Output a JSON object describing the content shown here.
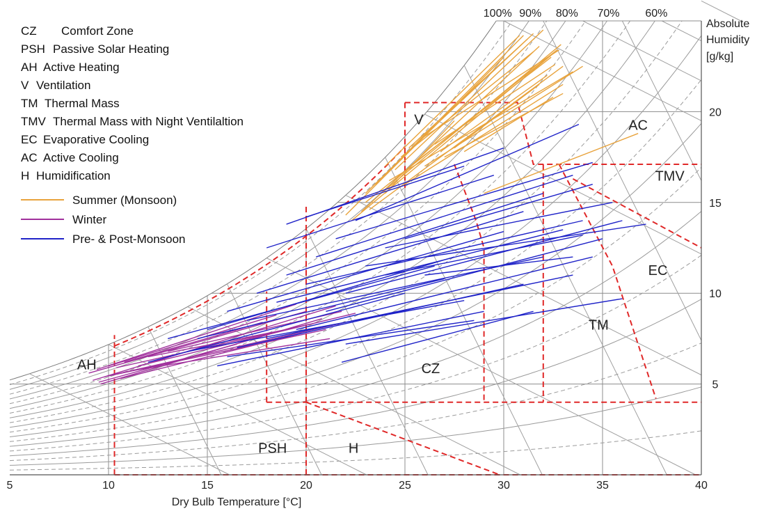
{
  "chart_data": {
    "type": "line",
    "title": "",
    "xlabel": "Dry Bulb Temperature [°C]",
    "ylabel": "Absolute Humidity [g/kg]",
    "ylabel_lines": [
      "Absolute",
      "Humidity",
      "[g/kg]"
    ],
    "xlim": [
      5,
      40
    ],
    "ylim": [
      0,
      25
    ],
    "x_ticks": [
      "5",
      "10",
      "15",
      "20",
      "25",
      "30",
      "35",
      "40"
    ],
    "y_ticks": [
      "5",
      "10",
      "15",
      "20"
    ],
    "rh_labels": [
      "100%",
      "90%",
      "80%",
      "70%",
      "60%"
    ],
    "rh_curves_solid": [
      1.0,
      0.9,
      0.8,
      0.7,
      0.6,
      0.5,
      0.4,
      0.3,
      0.2,
      0.1
    ],
    "rh_curves_dashed": [
      0.95,
      0.85,
      0.75,
      0.65,
      0.55,
      0.45,
      0.35,
      0.25,
      0.15,
      0.05
    ],
    "abbreviations": [
      {
        "code": "CZ",
        "text": "Comfort Zone"
      },
      {
        "code": "PSH",
        "text": "Passive Solar Heating"
      },
      {
        "code": "AH",
        "text": "Active Heating"
      },
      {
        "code": "V",
        "text": "Ventilation"
      },
      {
        "code": "TM",
        "text": "Thermal Mass"
      },
      {
        "code": "TMV",
        "text": "Thermal Mass with Night Ventilaltion"
      },
      {
        "code": "EC",
        "text": "Evaporative Cooling"
      },
      {
        "code": "AC",
        "text": "Active Cooling"
      },
      {
        "code": "H",
        "text": "Humidification"
      }
    ],
    "zone_labels": [
      {
        "text": "V",
        "x": 25.7,
        "y": 19.3
      },
      {
        "text": "AC",
        "x": 36.8,
        "y": 19.0
      },
      {
        "text": "TMV",
        "x": 38.4,
        "y": 16.2
      },
      {
        "text": "EC",
        "x": 37.8,
        "y": 11.0
      },
      {
        "text": "TM",
        "x": 34.8,
        "y": 8.0
      },
      {
        "text": "CZ",
        "x": 26.3,
        "y": 5.6
      },
      {
        "text": "AH",
        "x": 8.9,
        "y": 5.8
      },
      {
        "text": "PSH",
        "x": 18.3,
        "y": 1.2
      },
      {
        "text": "H",
        "x": 22.4,
        "y": 1.2
      }
    ],
    "zone_boundaries": [
      {
        "name": "AH",
        "points": [
          [
            10.3,
            0
          ],
          [
            10.3,
            7.7
          ]
        ]
      },
      {
        "name": "PSH",
        "points": [
          [
            18,
            4
          ],
          [
            18,
            10.1
          ]
        ]
      },
      {
        "name": "PSH",
        "points": [
          [
            20,
            0
          ],
          [
            20,
            14.8
          ]
        ]
      },
      {
        "name": "CZ",
        "points": [
          [
            18,
            4
          ],
          [
            40,
            4
          ]
        ]
      },
      {
        "name": "CZ",
        "points": [
          [
            20,
            4
          ],
          [
            29.8,
            0
          ]
        ]
      },
      {
        "name": "V",
        "points": [
          [
            25,
            20.5
          ],
          [
            30,
            20.5
          ],
          [
            30.7,
            20.5
          ],
          [
            31.5,
            17.1
          ],
          [
            40,
            17.1
          ]
        ]
      },
      {
        "name": "V",
        "points": [
          [
            25,
            20.5
          ],
          [
            25,
            15.8
          ]
        ]
      },
      {
        "name": "CZ",
        "points": [
          [
            27.5,
            17.1
          ],
          [
            28.6,
            14.0
          ],
          [
            29.0,
            12.5
          ],
          [
            29.0,
            4.0
          ]
        ]
      },
      {
        "name": "TM",
        "points": [
          [
            32,
            17.1
          ],
          [
            32,
            4
          ]
        ]
      },
      {
        "name": "EC",
        "points": [
          [
            32.8,
            17.1
          ],
          [
            35.5,
            11.5
          ],
          [
            37.7,
            4.2
          ]
        ]
      },
      {
        "name": "TMV",
        "points": [
          [
            33.5,
            16.3
          ],
          [
            40,
            12.5
          ]
        ]
      },
      {
        "name": "H",
        "points": [
          [
            10.3,
            0
          ],
          [
            40,
            0
          ]
        ]
      }
    ],
    "series": [
      {
        "name": "Summer (Monsoon)",
        "color": "#e8a33d",
        "segments": [
          [
            [
              22.0,
              14.3
            ],
            [
              30.0,
              23.0
            ]
          ],
          [
            [
              22.3,
              14.0
            ],
            [
              32.5,
              23.2
            ]
          ],
          [
            [
              22.8,
              14.5
            ],
            [
              31.8,
              23.6
            ]
          ],
          [
            [
              23.0,
              15.0
            ],
            [
              32.7,
              23.4
            ]
          ],
          [
            [
              23.2,
              14.6
            ],
            [
              33.0,
              22.5
            ]
          ],
          [
            [
              23.5,
              16.0
            ],
            [
              31.0,
              24.2
            ]
          ],
          [
            [
              23.8,
              15.5
            ],
            [
              32.9,
              23.7
            ]
          ],
          [
            [
              24.0,
              17.0
            ],
            [
              30.8,
              24.2
            ]
          ],
          [
            [
              24.2,
              16.2
            ],
            [
              33.5,
              22.2
            ]
          ],
          [
            [
              24.5,
              16.8
            ],
            [
              32.0,
              24.5
            ]
          ],
          [
            [
              24.8,
              17.5
            ],
            [
              31.5,
              23.3
            ]
          ],
          [
            [
              25.0,
              16.0
            ],
            [
              33.0,
              21.5
            ]
          ],
          [
            [
              25.2,
              18.0
            ],
            [
              31.5,
              24.3
            ]
          ],
          [
            [
              25.5,
              17.2
            ],
            [
              32.4,
              23.0
            ]
          ],
          [
            [
              25.8,
              18.5
            ],
            [
              32.8,
              23.4
            ]
          ],
          [
            [
              26.0,
              17.0
            ],
            [
              34.0,
              22.5
            ]
          ],
          [
            [
              26.3,
              19.0
            ],
            [
              31.2,
              24.0
            ]
          ],
          [
            [
              26.5,
              18.2
            ],
            [
              32.6,
              22.6
            ]
          ],
          [
            [
              26.8,
              17.8
            ],
            [
              32.2,
              22.0
            ]
          ],
          [
            [
              27.0,
              17.5
            ],
            [
              33.0,
              21.0
            ]
          ],
          [
            [
              27.5,
              18.0
            ],
            [
              31.8,
              21.5
            ]
          ],
          [
            [
              28.0,
              17.8
            ],
            [
              32.5,
              20.8
            ]
          ],
          [
            [
              24.0,
              15.5
            ],
            [
              27.5,
              19.5
            ]
          ],
          [
            [
              23.0,
              15.5
            ],
            [
              26.5,
              19.2
            ]
          ],
          [
            [
              29.0,
              15.5
            ],
            [
              36.8,
              18.8
            ]
          ]
        ]
      },
      {
        "name": "Winter",
        "color": "#a0309c",
        "segments": [
          [
            [
              9.0,
              5.6
            ],
            [
              20.0,
              9.0
            ]
          ],
          [
            [
              9.2,
              5.2
            ],
            [
              21.5,
              9.3
            ]
          ],
          [
            [
              9.4,
              5.8
            ],
            [
              19.5,
              9.4
            ]
          ],
          [
            [
              9.6,
              5.0
            ],
            [
              20.8,
              8.6
            ]
          ],
          [
            [
              9.8,
              5.4
            ],
            [
              21.0,
              8.0
            ]
          ],
          [
            [
              10.0,
              6.0
            ],
            [
              18.5,
              8.8
            ]
          ],
          [
            [
              10.2,
              5.5
            ],
            [
              22.0,
              8.4
            ]
          ],
          [
            [
              10.4,
              5.9
            ],
            [
              20.2,
              8.3
            ]
          ],
          [
            [
              10.6,
              5.3
            ],
            [
              19.8,
              7.8
            ]
          ],
          [
            [
              10.8,
              6.2
            ],
            [
              17.8,
              8.4
            ]
          ],
          [
            [
              11.0,
              5.7
            ],
            [
              21.2,
              7.5
            ]
          ],
          [
            [
              9.5,
              5.1
            ],
            [
              16.5,
              7.2
            ]
          ],
          [
            [
              11.5,
              6.0
            ],
            [
              22.5,
              8.9
            ]
          ],
          [
            [
              12.0,
              6.5
            ],
            [
              19.0,
              8.0
            ]
          ],
          [
            [
              13.0,
              6.8
            ],
            [
              21.8,
              9.0
            ]
          ]
        ]
      },
      {
        "name": "Pre- & Post-Monsoon",
        "color": "#1f23c8",
        "segments": [
          [
            [
              12.0,
              6.2
            ],
            [
              25.0,
              10.0
            ]
          ],
          [
            [
              13.0,
              7.5
            ],
            [
              26.5,
              11.5
            ]
          ],
          [
            [
              14.0,
              6.8
            ],
            [
              28.0,
              9.6
            ]
          ],
          [
            [
              15.0,
              8.0
            ],
            [
              27.5,
              12.0
            ]
          ],
          [
            [
              15.5,
              6.0
            ],
            [
              29.0,
              9.0
            ]
          ],
          [
            [
              16.0,
              9.0
            ],
            [
              30.0,
              13.4
            ]
          ],
          [
            [
              16.5,
              7.0
            ],
            [
              31.0,
              10.5
            ]
          ],
          [
            [
              17.0,
              8.5
            ],
            [
              32.0,
              12.0
            ]
          ],
          [
            [
              17.5,
              10.0
            ],
            [
              31.0,
              14.5
            ]
          ],
          [
            [
              18.0,
              7.5
            ],
            [
              33.5,
              11.0
            ]
          ],
          [
            [
              18.5,
              9.5
            ],
            [
              33.0,
              13.5
            ]
          ],
          [
            [
              19.0,
              11.0
            ],
            [
              32.0,
              15.5
            ]
          ],
          [
            [
              19.5,
              8.0
            ],
            [
              34.5,
              12.0
            ]
          ],
          [
            [
              20.0,
              10.5
            ],
            [
              34.0,
              14.0
            ]
          ],
          [
            [
              20.5,
              12.0
            ],
            [
              33.5,
              16.5
            ]
          ],
          [
            [
              21.0,
              9.0
            ],
            [
              35.0,
              13.0
            ]
          ],
          [
            [
              21.5,
              13.0
            ],
            [
              34.5,
              17.2
            ]
          ],
          [
            [
              22.0,
              10.0
            ],
            [
              36.0,
              14.0
            ]
          ],
          [
            [
              22.5,
              14.0
            ],
            [
              33.8,
              19.3
            ]
          ],
          [
            [
              23.0,
              11.5
            ],
            [
              37.2,
              13.8
            ]
          ],
          [
            [
              21.8,
              6.2
            ],
            [
              31.5,
              9.0
            ]
          ],
          [
            [
              24.0,
              12.5
            ],
            [
              35.5,
              15.0
            ]
          ],
          [
            [
              22.0,
              7.2
            ],
            [
              36.0,
              9.7
            ]
          ],
          [
            [
              25.0,
              13.0
            ],
            [
              34.5,
              16.0
            ]
          ],
          [
            [
              16.0,
              6.5
            ],
            [
              28.5,
              8.5
            ]
          ],
          [
            [
              14.5,
              7.5
            ],
            [
              27.0,
              10.8
            ]
          ],
          [
            [
              19.0,
              13.8
            ],
            [
              30.0,
              18.0
            ]
          ],
          [
            [
              20.0,
              14.2
            ],
            [
              28.0,
              17.0
            ]
          ],
          [
            [
              18.0,
              12.5
            ],
            [
              29.5,
              16.5
            ]
          ],
          [
            [
              24.0,
              11.0
            ],
            [
              34.0,
              13.2
            ]
          ],
          [
            [
              26.0,
              11.0
            ],
            [
              33.5,
              12.0
            ]
          ]
        ]
      }
    ]
  }
}
